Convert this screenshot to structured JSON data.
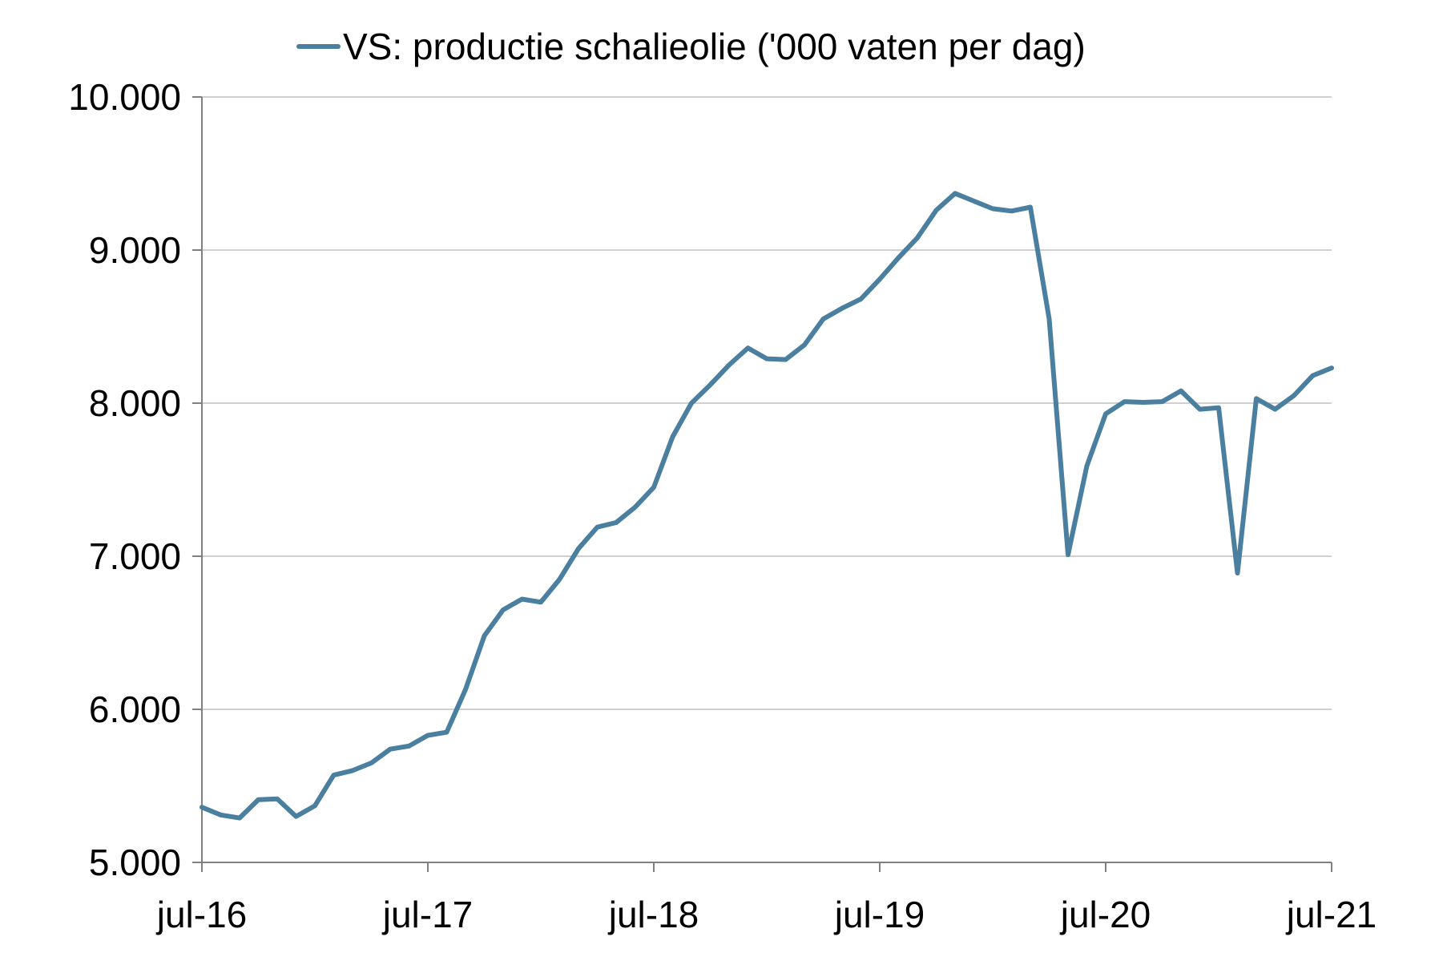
{
  "chart_data": {
    "type": "line",
    "title": "",
    "xlabel": "",
    "ylabel": "",
    "ylim": [
      5000,
      10000
    ],
    "yticks": [
      5000,
      6000,
      7000,
      8000,
      9000,
      10000
    ],
    "ytick_labels": [
      "5.000",
      "6.000",
      "7.000",
      "8.000",
      "9.000",
      "10.000"
    ],
    "xtick_labels": [
      "jul-16",
      "jul-17",
      "jul-18",
      "jul-19",
      "jul-20",
      "jul-21"
    ],
    "grid": "horizontal",
    "legend_position": "top",
    "x_start": "2016-07",
    "x_end": "2021-07",
    "series": [
      {
        "name": "VS: productie schalieolie ('000 vaten per dag)",
        "color": "#4a7f9f",
        "x": [
          "2016-07",
          "2016-08",
          "2016-09",
          "2016-10",
          "2016-11",
          "2016-12",
          "2017-01",
          "2017-02",
          "2017-03",
          "2017-04",
          "2017-05",
          "2017-06",
          "2017-07",
          "2017-08",
          "2017-09",
          "2017-10",
          "2017-11",
          "2017-12",
          "2018-01",
          "2018-02",
          "2018-03",
          "2018-04",
          "2018-05",
          "2018-06",
          "2018-07",
          "2018-08",
          "2018-09",
          "2018-10",
          "2018-11",
          "2018-12",
          "2019-01",
          "2019-02",
          "2019-03",
          "2019-04",
          "2019-05",
          "2019-06",
          "2019-07",
          "2019-08",
          "2019-09",
          "2019-10",
          "2019-11",
          "2019-12",
          "2020-01",
          "2020-02",
          "2020-03",
          "2020-04",
          "2020-05",
          "2020-06",
          "2020-07",
          "2020-08",
          "2020-09",
          "2020-10",
          "2020-11",
          "2020-12",
          "2021-01",
          "2021-02",
          "2021-03",
          "2021-04",
          "2021-05",
          "2021-06",
          "2021-07"
        ],
        "values": [
          5360,
          5310,
          5290,
          5410,
          5415,
          5300,
          5370,
          5570,
          5600,
          5650,
          5740,
          5760,
          5830,
          5850,
          6130,
          6480,
          6650,
          6720,
          6700,
          6850,
          7050,
          7190,
          7220,
          7320,
          7450,
          7780,
          8000,
          8120,
          8250,
          8360,
          8290,
          8285,
          8380,
          8550,
          8620,
          8680,
          8810,
          8950,
          9080,
          9260,
          9370,
          9320,
          9270,
          9255,
          9280,
          8550,
          7010,
          7590,
          7930,
          8010,
          8005,
          8010,
          8080,
          7960,
          7970,
          6890,
          8030,
          7960,
          8050,
          8180,
          8230
        ]
      }
    ]
  }
}
